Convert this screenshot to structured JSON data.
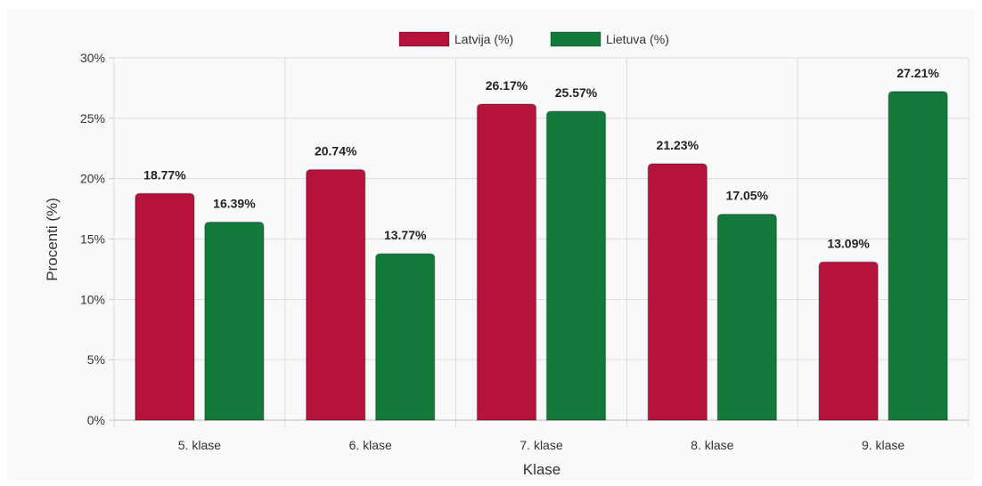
{
  "chart_data": {
    "type": "bar",
    "categories": [
      "5. klase",
      "6. klase",
      "7. klase",
      "8. klase",
      "9. klase"
    ],
    "series": [
      {
        "name": "Latvija (%)",
        "values": [
          18.77,
          20.74,
          26.17,
          21.23,
          13.09
        ],
        "labels": [
          "18.77%",
          "20.74%",
          "26.17%",
          "21.23%",
          "13.09%"
        ],
        "color": "#b5123c"
      },
      {
        "name": "Lietuva (%)",
        "values": [
          16.39,
          13.77,
          25.57,
          17.05,
          27.21
        ],
        "labels": [
          "16.39%",
          "13.77%",
          "25.57%",
          "17.05%",
          "27.21%"
        ],
        "color": "#147a3c"
      }
    ],
    "xlabel": "Klase",
    "ylabel": "Procenti (%)",
    "ylim": [
      0,
      30
    ],
    "yticks": [
      0,
      5,
      10,
      15,
      20,
      25,
      30
    ],
    "ytick_labels": [
      "0%",
      "5%",
      "10%",
      "15%",
      "20%",
      "25%",
      "30%"
    ],
    "grid": true,
    "legend_position": "top-center"
  }
}
